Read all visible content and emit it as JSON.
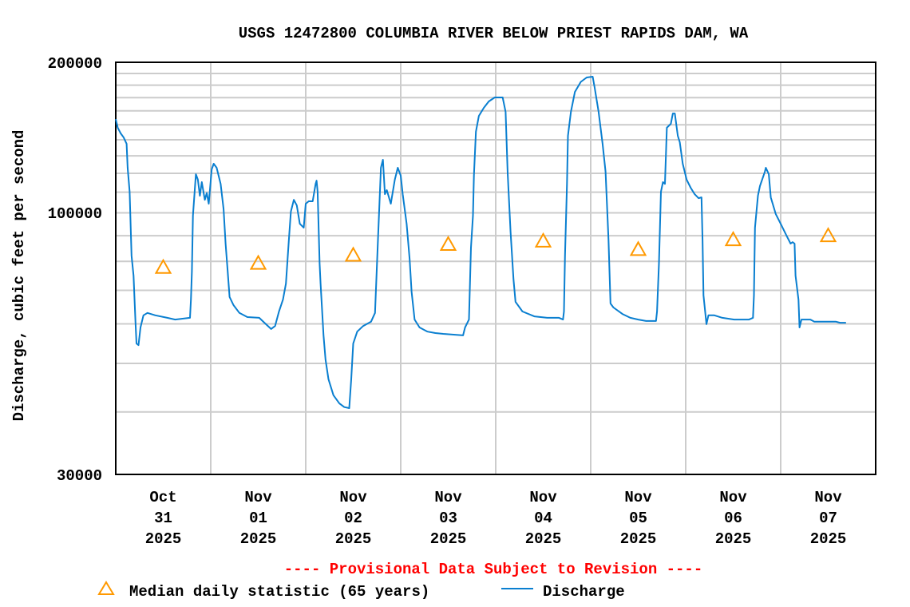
{
  "chart_data": {
    "type": "line",
    "title": "USGS 12472800 COLUMBIA RIVER BELOW PRIEST RAPIDS DAM, WA",
    "ylabel": "Discharge, cubic feet per second",
    "xlabel": "",
    "y_scale": "log",
    "ylim": [
      30000,
      200000
    ],
    "y_tick_labels": [
      "200000",
      "100000",
      "30000"
    ],
    "y_gridlines": [
      40000,
      50000,
      60000,
      70000,
      80000,
      90000,
      100000,
      110000,
      120000,
      130000,
      140000,
      150000,
      160000,
      170000,
      180000,
      190000
    ],
    "xlim": [
      "2025-10-31T00:00",
      "2025-11-08T00:00"
    ],
    "x_ticks": [
      {
        "date": "2025-10-31T12:00",
        "lines": [
          "Oct",
          "31",
          "2025"
        ]
      },
      {
        "date": "2025-11-01T12:00",
        "lines": [
          "Nov",
          "01",
          "2025"
        ]
      },
      {
        "date": "2025-11-02T12:00",
        "lines": [
          "Nov",
          "02",
          "2025"
        ]
      },
      {
        "date": "2025-11-03T12:00",
        "lines": [
          "Nov",
          "03",
          "2025"
        ]
      },
      {
        "date": "2025-11-04T12:00",
        "lines": [
          "Nov",
          "04",
          "2025"
        ]
      },
      {
        "date": "2025-11-05T12:00",
        "lines": [
          "Nov",
          "05",
          "2025"
        ]
      },
      {
        "date": "2025-11-06T12:00",
        "lines": [
          "Nov",
          "06",
          "2025"
        ]
      },
      {
        "date": "2025-11-07T12:00",
        "lines": [
          "Nov",
          "07",
          "2025"
        ]
      }
    ],
    "grid": true,
    "annotation": "---- Provisional Data Subject to Revision ----",
    "annotation_color": "#ff0000",
    "series": [
      {
        "name": "Median daily statistic (65 years)",
        "marker": "triangle",
        "color": "#ff9900",
        "points": [
          [
            "2025-10-31T12:00",
            77800
          ],
          [
            "2025-11-01T12:00",
            79300
          ],
          [
            "2025-11-02T12:00",
            82300
          ],
          [
            "2025-11-03T12:00",
            86500
          ],
          [
            "2025-11-04T12:00",
            87800
          ],
          [
            "2025-11-05T12:00",
            84500
          ],
          [
            "2025-11-06T12:00",
            88400
          ],
          [
            "2025-11-07T12:00",
            90000
          ]
        ]
      },
      {
        "name": "Discharge",
        "marker": "line",
        "color": "#0a7fd0",
        "points": [
          [
            "2025-10-31T00:00",
            154000
          ],
          [
            "2025-10-31T00:30",
            148000
          ],
          [
            "2025-10-31T01:15",
            144200
          ],
          [
            "2025-10-31T02:00",
            141500
          ],
          [
            "2025-10-31T02:45",
            137400
          ],
          [
            "2025-10-31T03:00",
            123100
          ],
          [
            "2025-10-31T03:30",
            110200
          ],
          [
            "2025-10-31T04:00",
            82100
          ],
          [
            "2025-10-31T04:30",
            74900
          ],
          [
            "2025-10-31T05:00",
            60100
          ],
          [
            "2025-10-31T05:15",
            54800
          ],
          [
            "2025-10-31T05:45",
            54400
          ],
          [
            "2025-10-31T06:15",
            59000
          ],
          [
            "2025-10-31T07:00",
            62400
          ],
          [
            "2025-10-31T08:00",
            63100
          ],
          [
            "2025-10-31T10:00",
            62400
          ],
          [
            "2025-10-31T13:00",
            61700
          ],
          [
            "2025-10-31T15:00",
            61200
          ],
          [
            "2025-10-31T18:45",
            61700
          ],
          [
            "2025-10-31T19:00",
            67100
          ],
          [
            "2025-10-31T19:15",
            76300
          ],
          [
            "2025-10-31T19:30",
            98700
          ],
          [
            "2025-10-31T20:15",
            119500
          ],
          [
            "2025-10-31T20:45",
            116500
          ],
          [
            "2025-10-31T21:15",
            108200
          ],
          [
            "2025-10-31T21:45",
            115200
          ],
          [
            "2025-10-31T22:30",
            106200
          ],
          [
            "2025-10-31T23:00",
            109600
          ],
          [
            "2025-10-31T23:30",
            104300
          ],
          [
            "2025-11-01T00:15",
            122200
          ],
          [
            "2025-11-01T00:45",
            125400
          ],
          [
            "2025-11-01T01:30",
            123100
          ],
          [
            "2025-11-01T02:30",
            114300
          ],
          [
            "2025-11-01T03:15",
            101700
          ],
          [
            "2025-11-01T03:45",
            86800
          ],
          [
            "2025-11-01T04:15",
            76900
          ],
          [
            "2025-11-01T04:45",
            67900
          ],
          [
            "2025-11-01T05:45",
            65400
          ],
          [
            "2025-11-01T07:15",
            63100
          ],
          [
            "2025-11-01T09:15",
            61900
          ],
          [
            "2025-11-01T12:15",
            61700
          ],
          [
            "2025-11-01T13:45",
            60100
          ],
          [
            "2025-11-01T15:15",
            58600
          ],
          [
            "2025-11-01T16:15",
            59400
          ],
          [
            "2025-11-01T17:15",
            63500
          ],
          [
            "2025-11-01T18:15",
            67100
          ],
          [
            "2025-11-01T19:00",
            72200
          ],
          [
            "2025-11-01T19:45",
            88400
          ],
          [
            "2025-11-01T20:15",
            100600
          ],
          [
            "2025-11-01T21:00",
            106200
          ],
          [
            "2025-11-01T21:45",
            103500
          ],
          [
            "2025-11-01T22:30",
            95100
          ],
          [
            "2025-11-01T23:30",
            93400
          ],
          [
            "2025-11-02T00:00",
            104300
          ],
          [
            "2025-11-02T00:45",
            105500
          ],
          [
            "2025-11-02T01:45",
            105500
          ],
          [
            "2025-11-02T02:30",
            114300
          ],
          [
            "2025-11-02T02:45",
            116000
          ],
          [
            "2025-11-02T03:00",
            110200
          ],
          [
            "2025-11-02T03:30",
            79200
          ],
          [
            "2025-11-02T03:45",
            72200
          ],
          [
            "2025-11-02T04:30",
            56900
          ],
          [
            "2025-11-02T05:00",
            50900
          ],
          [
            "2025-11-02T05:45",
            46500
          ],
          [
            "2025-11-02T07:00",
            43200
          ],
          [
            "2025-11-02T08:30",
            41600
          ],
          [
            "2025-11-02T09:45",
            40900
          ],
          [
            "2025-11-02T11:00",
            40700
          ],
          [
            "2025-11-02T11:30",
            46500
          ],
          [
            "2025-11-02T12:00",
            54800
          ],
          [
            "2025-11-02T13:00",
            57900
          ],
          [
            "2025-11-02T14:30",
            59400
          ],
          [
            "2025-11-02T16:30",
            60600
          ],
          [
            "2025-11-02T17:30",
            63100
          ],
          [
            "2025-11-02T18:15",
            88400
          ],
          [
            "2025-11-02T19:00",
            123100
          ],
          [
            "2025-11-02T19:30",
            127700
          ],
          [
            "2025-11-02T20:00",
            109000
          ],
          [
            "2025-11-02T20:30",
            111000
          ],
          [
            "2025-11-02T21:30",
            104300
          ],
          [
            "2025-11-02T22:30",
            116500
          ],
          [
            "2025-11-02T23:15",
            123100
          ],
          [
            "2025-11-03T00:00",
            118700
          ],
          [
            "2025-11-03T00:30",
            109000
          ],
          [
            "2025-11-03T01:30",
            95100
          ],
          [
            "2025-11-03T02:15",
            80700
          ],
          [
            "2025-11-03T02:45",
            69600
          ],
          [
            "2025-11-03T03:30",
            61200
          ],
          [
            "2025-11-03T04:45",
            59000
          ],
          [
            "2025-11-03T06:45",
            57900
          ],
          [
            "2025-11-03T08:45",
            57500
          ],
          [
            "2025-11-03T10:45",
            57300
          ],
          [
            "2025-11-03T15:45",
            56900
          ],
          [
            "2025-11-03T16:15",
            59000
          ],
          [
            "2025-11-03T17:15",
            61200
          ],
          [
            "2025-11-03T17:45",
            85200
          ],
          [
            "2025-11-03T18:15",
            98700
          ],
          [
            "2025-11-03T18:30",
            118700
          ],
          [
            "2025-11-03T19:00",
            145300
          ],
          [
            "2025-11-03T19:45",
            156300
          ],
          [
            "2025-11-03T21:00",
            162200
          ],
          [
            "2025-11-03T22:15",
            167000
          ],
          [
            "2025-11-03T23:45",
            170100
          ],
          [
            "2025-11-04T01:45",
            170100
          ],
          [
            "2025-11-04T02:30",
            159200
          ],
          [
            "2025-11-04T03:00",
            120900
          ],
          [
            "2025-11-04T03:45",
            91700
          ],
          [
            "2025-11-04T04:30",
            73600
          ],
          [
            "2025-11-04T05:00",
            66400
          ],
          [
            "2025-11-04T06:45",
            63500
          ],
          [
            "2025-11-04T09:45",
            62100
          ],
          [
            "2025-11-04T13:00",
            61700
          ],
          [
            "2025-11-04T16:00",
            61700
          ],
          [
            "2025-11-04T17:00",
            61200
          ],
          [
            "2025-11-04T17:15",
            63500
          ],
          [
            "2025-11-04T17:30",
            82100
          ],
          [
            "2025-11-04T18:00",
            114300
          ],
          [
            "2025-11-04T18:15",
            142600
          ],
          [
            "2025-11-04T19:00",
            159200
          ],
          [
            "2025-11-04T20:00",
            174500
          ],
          [
            "2025-11-04T21:30",
            182800
          ],
          [
            "2025-11-04T23:00",
            186500
          ],
          [
            "2025-11-05T00:30",
            187200
          ],
          [
            "2025-11-05T01:00",
            177800
          ],
          [
            "2025-11-05T02:00",
            159200
          ],
          [
            "2025-11-05T03:00",
            137400
          ],
          [
            "2025-11-05T03:45",
            120900
          ],
          [
            "2025-11-05T04:30",
            88400
          ],
          [
            "2025-11-05T05:00",
            65900
          ],
          [
            "2025-11-05T05:45",
            64700
          ],
          [
            "2025-11-05T08:00",
            62800
          ],
          [
            "2025-11-05T10:00",
            61700
          ],
          [
            "2025-11-05T12:00",
            61200
          ],
          [
            "2025-11-05T14:00",
            60800
          ],
          [
            "2025-11-05T16:30",
            60800
          ],
          [
            "2025-11-05T16:45",
            63500
          ],
          [
            "2025-11-05T17:15",
            79200
          ],
          [
            "2025-11-05T17:45",
            110200
          ],
          [
            "2025-11-05T18:15",
            115200
          ],
          [
            "2025-11-05T18:45",
            114300
          ],
          [
            "2025-11-05T19:15",
            148000
          ],
          [
            "2025-11-05T20:15",
            150700
          ],
          [
            "2025-11-05T20:45",
            158000
          ],
          [
            "2025-11-05T21:15",
            158000
          ],
          [
            "2025-11-05T22:00",
            142600
          ],
          [
            "2025-11-05T22:30",
            138400
          ],
          [
            "2025-11-05T23:15",
            125400
          ],
          [
            "2025-11-06T00:15",
            116500
          ],
          [
            "2025-11-06T01:15",
            112300
          ],
          [
            "2025-11-06T02:15",
            109000
          ],
          [
            "2025-11-06T03:15",
            107000
          ],
          [
            "2025-11-06T04:00",
            107400
          ],
          [
            "2025-11-06T04:15",
            88400
          ],
          [
            "2025-11-06T04:30",
            68400
          ],
          [
            "2025-11-06T05:15",
            59900
          ],
          [
            "2025-11-06T05:45",
            62400
          ],
          [
            "2025-11-06T07:15",
            62400
          ],
          [
            "2025-11-06T09:15",
            61700
          ],
          [
            "2025-11-06T12:15",
            61200
          ],
          [
            "2025-11-06T16:00",
            61200
          ],
          [
            "2025-11-06T17:00",
            61700
          ],
          [
            "2025-11-06T17:15",
            68400
          ],
          [
            "2025-11-06T17:30",
            93400
          ],
          [
            "2025-11-06T18:00",
            103200
          ],
          [
            "2025-11-06T18:15",
            108200
          ],
          [
            "2025-11-06T18:45",
            113100
          ],
          [
            "2025-11-06T20:00",
            120900
          ],
          [
            "2025-11-06T20:15",
            123100
          ],
          [
            "2025-11-06T21:00",
            119500
          ],
          [
            "2025-11-06T21:30",
            107400
          ],
          [
            "2025-11-06T22:45",
            99500
          ],
          [
            "2025-11-07T00:00",
            95100
          ],
          [
            "2025-11-07T01:30",
            90000
          ],
          [
            "2025-11-07T02:30",
            86800
          ],
          [
            "2025-11-07T03:00",
            87400
          ],
          [
            "2025-11-07T03:30",
            86800
          ],
          [
            "2025-11-07T03:45",
            74900
          ],
          [
            "2025-11-07T04:30",
            67100
          ],
          [
            "2025-11-07T04:45",
            59000
          ],
          [
            "2025-11-07T05:15",
            61200
          ],
          [
            "2025-11-07T07:30",
            61200
          ],
          [
            "2025-11-07T08:30",
            60600
          ],
          [
            "2025-11-07T14:00",
            60600
          ],
          [
            "2025-11-07T15:00",
            60300
          ],
          [
            "2025-11-07T16:30",
            60300
          ]
        ]
      }
    ],
    "legend": {
      "placement": "bottom",
      "items": [
        {
          "label": "Median daily statistic (65 years)",
          "marker": "triangle"
        },
        {
          "label": "Discharge",
          "marker": "line"
        }
      ]
    }
  }
}
